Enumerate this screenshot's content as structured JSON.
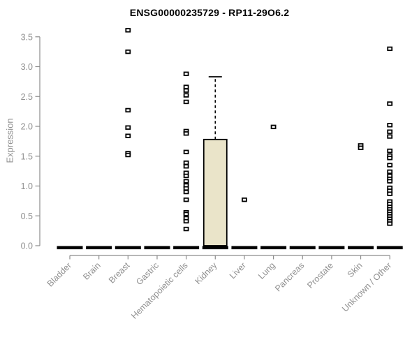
{
  "chart_data": {
    "type": "boxplot",
    "title": "ENSG00000235729 - RP11-29O6.2",
    "ylabel": "Expression",
    "xlabel": "",
    "ylim": [
      0.0,
      3.5
    ],
    "ytick_labels": [
      "0.0",
      "0.5",
      "1.0",
      "1.5",
      "2.0",
      "2.5",
      "3.0",
      "3.5"
    ],
    "grid": false,
    "legend": "none",
    "axis_color": "#8C8C8C",
    "tick_label_color": "#909090",
    "box_fill_color": "#EAE4C9",
    "box_line_color": "#000000",
    "point_color": "#000000",
    "categories": [
      "Bladder",
      "Brain",
      "Breast",
      "Gastric",
      "Hematopoietic cells",
      "Kidney",
      "Liver",
      "Lung",
      "Pancreas",
      "Prostate",
      "Skin",
      "Unknown / Other"
    ],
    "groups": [
      {
        "category": "Bladder",
        "box": {
          "whisker_low": 0,
          "q1": 0,
          "median": 0,
          "q3": 0,
          "whisker_high": 0
        },
        "points": []
      },
      {
        "category": "Brain",
        "box": {
          "whisker_low": 0,
          "q1": 0,
          "median": 0,
          "q3": 0,
          "whisker_high": 0
        },
        "points": []
      },
      {
        "category": "Breast",
        "box": {
          "whisker_low": 0,
          "q1": 0,
          "median": 0,
          "q3": 0,
          "whisker_high": 0
        },
        "points": [
          3.61,
          3.25,
          2.27,
          1.98,
          1.84,
          1.55,
          1.52
        ]
      },
      {
        "category": "Gastric",
        "box": {
          "whisker_low": 0,
          "q1": 0,
          "median": 0,
          "q3": 0,
          "whisker_high": 0
        },
        "points": []
      },
      {
        "category": "Hematopoietic cells",
        "box": {
          "whisker_low": 0,
          "q1": 0,
          "median": 0,
          "q3": 0,
          "whisker_high": 0
        },
        "points": [
          2.88,
          2.66,
          2.6,
          2.52,
          2.41,
          1.92,
          1.88,
          1.57,
          1.39,
          1.33,
          1.22,
          1.17,
          1.08,
          1.01,
          0.96,
          0.9,
          0.77,
          0.56,
          0.53,
          0.46,
          0.41,
          0.28
        ]
      },
      {
        "category": "Kidney",
        "box": {
          "whisker_low": 0,
          "q1": 0,
          "median": 0,
          "q3": 1.78,
          "whisker_high": 2.83
        },
        "points": []
      },
      {
        "category": "Liver",
        "box": {
          "whisker_low": 0,
          "q1": 0,
          "median": 0,
          "q3": 0,
          "whisker_high": 0
        },
        "points": [
          0.77
        ]
      },
      {
        "category": "Lung",
        "box": {
          "whisker_low": 0,
          "q1": 0,
          "median": 0,
          "q3": 0,
          "whisker_high": 0
        },
        "points": [
          1.99
        ]
      },
      {
        "category": "Pancreas",
        "box": {
          "whisker_low": 0,
          "q1": 0,
          "median": 0,
          "q3": 0,
          "whisker_high": 0
        },
        "points": []
      },
      {
        "category": "Prostate",
        "box": {
          "whisker_low": 0,
          "q1": 0,
          "median": 0,
          "q3": 0,
          "whisker_high": 0
        },
        "points": []
      },
      {
        "category": "Skin",
        "box": {
          "whisker_low": 0,
          "q1": 0,
          "median": 0,
          "q3": 0,
          "whisker_high": 0
        },
        "points": [
          1.68,
          1.64
        ]
      },
      {
        "category": "Unknown / Other",
        "box": {
          "whisker_low": 0,
          "q1": 0,
          "median": 0,
          "q3": 0,
          "whisker_high": 0
        },
        "points": [
          3.3,
          2.38,
          2.02,
          1.91,
          1.83,
          1.59,
          1.51,
          1.47,
          1.35,
          1.24,
          1.17,
          1.12,
          1.08,
          0.97,
          0.92,
          0.87,
          0.74,
          0.7,
          0.65,
          0.61,
          0.57,
          0.53,
          0.49,
          0.45,
          0.41,
          0.37
        ]
      }
    ]
  }
}
